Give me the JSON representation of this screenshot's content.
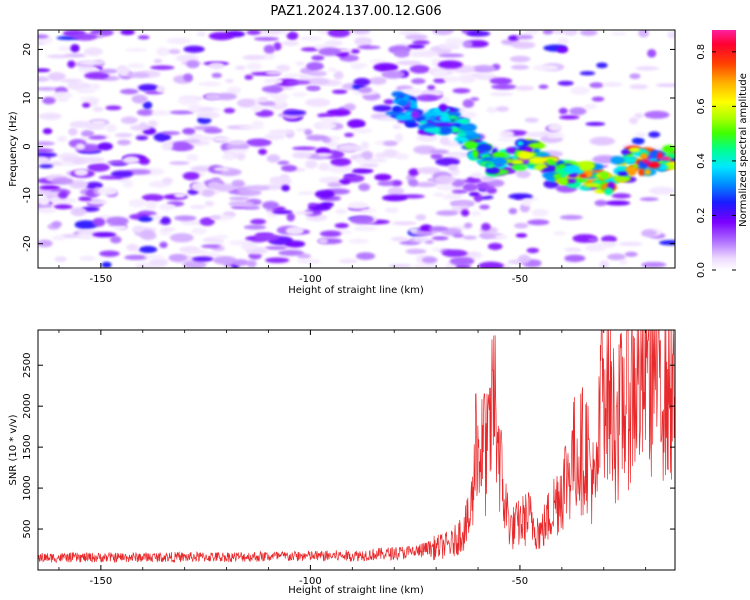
{
  "title": "PAZ1.2024.137.00.12.G06",
  "chart_data": [
    {
      "type": "heatmap",
      "xlabel": "Height of straight line (km)",
      "ylabel": "Frequency (Hz)",
      "xlim": [
        -165,
        -13
      ],
      "ylim": [
        -25,
        24
      ],
      "xticks": [
        -150,
        -100,
        -50
      ],
      "yticks": [
        -20,
        -10,
        0,
        10,
        20
      ],
      "colorbar": {
        "label": "Normalized spectral amplitude",
        "range": [
          0.0,
          0.88
        ],
        "ticks": [
          0.0,
          0.2,
          0.4,
          0.6,
          0.8
        ],
        "colormap": "gist_ncar_r"
      },
      "ridge": {
        "points": [
          {
            "x": -80,
            "y": 9
          },
          {
            "x": -72,
            "y": 5
          },
          {
            "x": -66,
            "y": 6
          },
          {
            "x": -60,
            "y": -1
          },
          {
            "x": -55,
            "y": -4
          },
          {
            "x": -48,
            "y": -1
          },
          {
            "x": -42,
            "y": -4
          },
          {
            "x": -36,
            "y": -6
          },
          {
            "x": -29,
            "y": -7
          },
          {
            "x": -24,
            "y": -3
          },
          {
            "x": -18,
            "y": -3
          },
          {
            "x": -13,
            "y": -3
          }
        ],
        "peak_amplitude": 0.88
      },
      "noise_amplitude_range": [
        0.02,
        0.2
      ]
    },
    {
      "type": "line",
      "xlabel": "Height of straight line (km)",
      "ylabel": "SNR (10 * v/v)",
      "xlim": [
        -165,
        -13
      ],
      "ylim": [
        0,
        2930
      ],
      "xticks": [
        -150,
        -100,
        -50
      ],
      "yticks": [
        500,
        1000,
        1500,
        2000,
        2500
      ],
      "color": "#e8282a",
      "envelope": [
        {
          "x": -165,
          "y": 150
        },
        {
          "x": -120,
          "y": 160
        },
        {
          "x": -90,
          "y": 175
        },
        {
          "x": -75,
          "y": 220
        },
        {
          "x": -66,
          "y": 320
        },
        {
          "x": -62,
          "y": 600
        },
        {
          "x": -60,
          "y": 1500
        },
        {
          "x": -58,
          "y": 1350
        },
        {
          "x": -56,
          "y": 2100
        },
        {
          "x": -54,
          "y": 900
        },
        {
          "x": -52,
          "y": 500
        },
        {
          "x": -48,
          "y": 650
        },
        {
          "x": -45,
          "y": 450
        },
        {
          "x": -40,
          "y": 1000
        },
        {
          "x": -37,
          "y": 1400
        },
        {
          "x": -34,
          "y": 1500
        },
        {
          "x": -32,
          "y": 900
        },
        {
          "x": -30,
          "y": 2500
        },
        {
          "x": -27,
          "y": 1700
        },
        {
          "x": -25,
          "y": 2100
        },
        {
          "x": -22,
          "y": 2300
        },
        {
          "x": -18,
          "y": 2500
        },
        {
          "x": -13,
          "y": 2150
        }
      ],
      "spikes": [
        {
          "x": -60.5,
          "y": 2150
        },
        {
          "x": -58.5,
          "y": 2150
        },
        {
          "x": -56.5,
          "y": 2440
        },
        {
          "x": -37.5,
          "y": 1700
        },
        {
          "x": -30.5,
          "y": 2920
        },
        {
          "x": -27,
          "y": 2000
        },
        {
          "x": -19.5,
          "y": 2800
        },
        {
          "x": -16.5,
          "y": 2800
        },
        {
          "x": -13.5,
          "y": 2630
        }
      ],
      "noise_fraction": 0.55
    }
  ]
}
